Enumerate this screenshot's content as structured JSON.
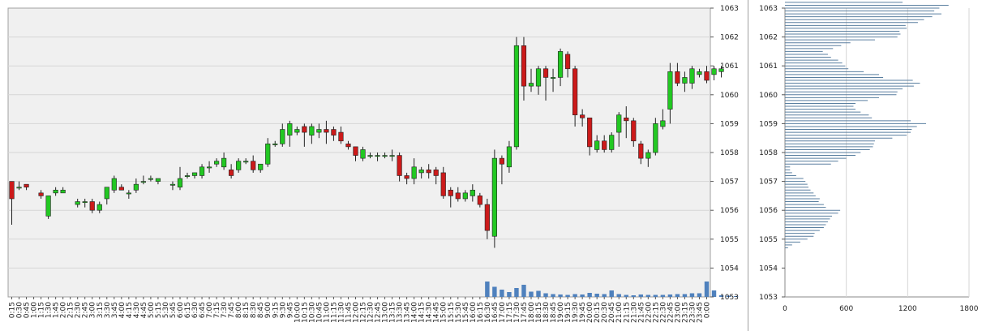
{
  "colors": {
    "up": "#22c822",
    "down": "#cc1a1a",
    "volume": "#4f81bd",
    "profile": "#5a7fa0",
    "plot_bg": "#f0f0f0"
  },
  "chart_data": [
    {
      "type": "candlestick",
      "ylim": [
        1053,
        1063
      ],
      "yticks": [
        "1053",
        "1054",
        "1055",
        "1056",
        "1057",
        "1058",
        "1059",
        "1060",
        "1061",
        "1062",
        "1063"
      ],
      "grid": true,
      "xticks": [
        "0:15",
        "0:30",
        "0:45",
        "1:00",
        "1:15",
        "1:30",
        "1:45",
        "2:00",
        "2:15",
        "2:30",
        "2:45",
        "3:00",
        "3:15",
        "3:30",
        "3:45",
        "4:00",
        "4:15",
        "4:30",
        "4:45",
        "5:00",
        "5:15",
        "5:30",
        "5:45",
        "6:00",
        "6:15",
        "6:30",
        "6:45",
        "7:00",
        "7:15",
        "7:30",
        "7:45",
        "8:00",
        "8:15",
        "8:30",
        "8:45",
        "9:00",
        "9:15",
        "9:30",
        "9:45",
        "10:00",
        "10:15",
        "10:30",
        "10:45",
        "11:00",
        "11:15",
        "11:30",
        "11:45",
        "12:00",
        "12:15",
        "12:30",
        "12:45",
        "13:00",
        "13:15",
        "13:30",
        "13:45",
        "14:00",
        "14:15",
        "14:30",
        "14:45",
        "15:00",
        "15:15",
        "15:30",
        "15:45",
        "16:00",
        "16:15",
        "16:30",
        "16:45",
        "17:00",
        "17:15",
        "17:30",
        "17:45",
        "18:00",
        "18:15",
        "18:30",
        "18:45",
        "19:00",
        "19:15",
        "19:30",
        "19:45",
        "20:00",
        "20:15",
        "20:30",
        "20:45",
        "21:00",
        "21:15",
        "21:30",
        "21:45",
        "22:00",
        "22:15",
        "22:30",
        "22:45",
        "23:00",
        "23:15",
        "23:30",
        "23:45",
        "0:00"
      ],
      "candles": [
        {
          "o": 1057.0,
          "h": 1057.0,
          "l": 1055.5,
          "c": 1056.4
        },
        {
          "o": 1056.8,
          "h": 1057.0,
          "l": 1056.7,
          "c": 1056.8
        },
        {
          "o": 1056.9,
          "h": 1056.9,
          "l": 1056.7,
          "c": 1056.8
        },
        null,
        {
          "o": 1056.6,
          "h": 1056.7,
          "l": 1056.4,
          "c": 1056.5
        },
        {
          "o": 1055.8,
          "h": 1056.5,
          "l": 1055.7,
          "c": 1056.5
        },
        {
          "o": 1056.6,
          "h": 1056.8,
          "l": 1056.5,
          "c": 1056.7
        },
        {
          "o": 1056.6,
          "h": 1056.8,
          "l": 1056.6,
          "c": 1056.7
        },
        null,
        {
          "o": 1056.2,
          "h": 1056.4,
          "l": 1056.1,
          "c": 1056.3
        },
        {
          "o": 1056.3,
          "h": 1056.4,
          "l": 1056.1,
          "c": 1056.3
        },
        {
          "o": 1056.3,
          "h": 1056.4,
          "l": 1055.9,
          "c": 1056.0
        },
        {
          "o": 1056.0,
          "h": 1056.3,
          "l": 1055.9,
          "c": 1056.2
        },
        {
          "o": 1056.4,
          "h": 1056.8,
          "l": 1056.2,
          "c": 1056.8
        },
        {
          "o": 1056.7,
          "h": 1057.2,
          "l": 1056.6,
          "c": 1057.1
        },
        {
          "o": 1056.8,
          "h": 1056.9,
          "l": 1056.7,
          "c": 1056.7
        },
        {
          "o": 1056.6,
          "h": 1056.7,
          "l": 1056.4,
          "c": 1056.6
        },
        {
          "o": 1056.7,
          "h": 1057.1,
          "l": 1056.6,
          "c": 1056.9
        },
        {
          "o": 1057.0,
          "h": 1057.2,
          "l": 1056.9,
          "c": 1057.0
        },
        {
          "o": 1057.1,
          "h": 1057.2,
          "l": 1057.0,
          "c": 1057.1
        },
        {
          "o": 1057.0,
          "h": 1057.1,
          "l": 1056.9,
          "c": 1057.1
        },
        null,
        {
          "o": 1056.9,
          "h": 1057.0,
          "l": 1056.7,
          "c": 1056.9
        },
        {
          "o": 1056.8,
          "h": 1057.5,
          "l": 1056.7,
          "c": 1057.1
        },
        {
          "o": 1057.2,
          "h": 1057.3,
          "l": 1057.1,
          "c": 1057.2
        },
        {
          "o": 1057.2,
          "h": 1057.3,
          "l": 1057.1,
          "c": 1057.3
        },
        {
          "o": 1057.2,
          "h": 1057.6,
          "l": 1057.1,
          "c": 1057.5
        },
        {
          "o": 1057.5,
          "h": 1057.7,
          "l": 1057.3,
          "c": 1057.5
        },
        {
          "o": 1057.6,
          "h": 1057.8,
          "l": 1057.5,
          "c": 1057.7
        },
        {
          "o": 1057.5,
          "h": 1058.0,
          "l": 1057.4,
          "c": 1057.8
        },
        {
          "o": 1057.4,
          "h": 1057.6,
          "l": 1057.1,
          "c": 1057.2
        },
        {
          "o": 1057.4,
          "h": 1057.8,
          "l": 1057.3,
          "c": 1057.7
        },
        {
          "o": 1057.7,
          "h": 1057.8,
          "l": 1057.6,
          "c": 1057.7
        },
        {
          "o": 1057.7,
          "h": 1057.9,
          "l": 1057.3,
          "c": 1057.4
        },
        {
          "o": 1057.4,
          "h": 1057.6,
          "l": 1057.3,
          "c": 1057.6
        },
        {
          "o": 1057.6,
          "h": 1058.5,
          "l": 1057.5,
          "c": 1058.3
        },
        {
          "o": 1058.3,
          "h": 1058.4,
          "l": 1058.2,
          "c": 1058.3
        },
        {
          "o": 1058.3,
          "h": 1059.0,
          "l": 1058.2,
          "c": 1058.8
        },
        {
          "o": 1058.6,
          "h": 1059.1,
          "l": 1058.2,
          "c": 1059.0
        },
        {
          "o": 1058.7,
          "h": 1058.9,
          "l": 1058.6,
          "c": 1058.8
        },
        {
          "o": 1058.9,
          "h": 1059.0,
          "l": 1058.2,
          "c": 1058.7
        },
        {
          "o": 1058.6,
          "h": 1059.0,
          "l": 1058.3,
          "c": 1058.9
        },
        {
          "o": 1058.7,
          "h": 1059.0,
          "l": 1058.5,
          "c": 1058.8
        },
        {
          "o": 1058.8,
          "h": 1059.1,
          "l": 1058.3,
          "c": 1058.7
        },
        {
          "o": 1058.8,
          "h": 1058.9,
          "l": 1058.4,
          "c": 1058.6
        },
        {
          "o": 1058.7,
          "h": 1058.9,
          "l": 1058.3,
          "c": 1058.4
        },
        {
          "o": 1058.3,
          "h": 1058.4,
          "l": 1058.1,
          "c": 1058.2
        },
        {
          "o": 1058.2,
          "h": 1058.2,
          "l": 1057.7,
          "c": 1057.9
        },
        {
          "o": 1057.8,
          "h": 1058.2,
          "l": 1057.7,
          "c": 1058.1
        },
        {
          "o": 1057.9,
          "h": 1058.0,
          "l": 1057.8,
          "c": 1057.9
        },
        {
          "o": 1057.9,
          "h": 1058.0,
          "l": 1057.7,
          "c": 1057.9
        },
        {
          "o": 1057.9,
          "h": 1058.0,
          "l": 1057.8,
          "c": 1057.9
        },
        {
          "o": 1057.9,
          "h": 1058.1,
          "l": 1057.7,
          "c": 1057.9
        },
        {
          "o": 1057.9,
          "h": 1058.0,
          "l": 1057.0,
          "c": 1057.2
        },
        {
          "o": 1057.2,
          "h": 1057.3,
          "l": 1056.9,
          "c": 1057.1
        },
        {
          "o": 1057.1,
          "h": 1057.8,
          "l": 1056.9,
          "c": 1057.5
        },
        {
          "o": 1057.3,
          "h": 1057.5,
          "l": 1057.1,
          "c": 1057.4
        },
        {
          "o": 1057.4,
          "h": 1057.6,
          "l": 1057.1,
          "c": 1057.3
        },
        {
          "o": 1057.4,
          "h": 1057.5,
          "l": 1056.9,
          "c": 1057.2
        },
        {
          "o": 1057.3,
          "h": 1057.5,
          "l": 1056.4,
          "c": 1056.5
        },
        {
          "o": 1056.7,
          "h": 1056.8,
          "l": 1056.1,
          "c": 1056.5
        },
        {
          "o": 1056.6,
          "h": 1056.8,
          "l": 1056.3,
          "c": 1056.4
        },
        {
          "o": 1056.4,
          "h": 1056.7,
          "l": 1056.3,
          "c": 1056.6
        },
        {
          "o": 1056.5,
          "h": 1056.9,
          "l": 1056.3,
          "c": 1056.7
        },
        {
          "o": 1056.5,
          "h": 1056.6,
          "l": 1056.1,
          "c": 1056.2
        },
        {
          "o": 1056.2,
          "h": 1056.4,
          "l": 1055.0,
          "c": 1055.3
        },
        {
          "o": 1055.1,
          "h": 1058.1,
          "l": 1054.7,
          "c": 1057.8
        },
        {
          "o": 1057.8,
          "h": 1057.9,
          "l": 1056.9,
          "c": 1057.6
        },
        {
          "o": 1057.5,
          "h": 1058.4,
          "l": 1057.3,
          "c": 1058.2
        },
        {
          "o": 1058.2,
          "h": 1062.0,
          "l": 1058.1,
          "c": 1061.7
        },
        {
          "o": 1061.7,
          "h": 1062.0,
          "l": 1059.8,
          "c": 1060.3
        },
        {
          "o": 1060.3,
          "h": 1060.9,
          "l": 1060.1,
          "c": 1060.4
        },
        {
          "o": 1060.3,
          "h": 1061.0,
          "l": 1060.0,
          "c": 1060.9
        },
        {
          "o": 1060.9,
          "h": 1061.0,
          "l": 1059.8,
          "c": 1060.6
        },
        {
          "o": 1060.6,
          "h": 1060.9,
          "l": 1060.1,
          "c": 1060.6
        },
        {
          "o": 1060.6,
          "h": 1061.6,
          "l": 1060.3,
          "c": 1061.5
        },
        {
          "o": 1061.4,
          "h": 1061.5,
          "l": 1060.6,
          "c": 1060.9
        },
        {
          "o": 1060.9,
          "h": 1061.0,
          "l": 1058.9,
          "c": 1059.3
        },
        {
          "o": 1059.3,
          "h": 1059.5,
          "l": 1058.9,
          "c": 1059.2
        },
        {
          "o": 1059.2,
          "h": 1059.2,
          "l": 1057.9,
          "c": 1058.2
        },
        {
          "o": 1058.1,
          "h": 1058.6,
          "l": 1058.0,
          "c": 1058.4
        },
        {
          "o": 1058.4,
          "h": 1058.6,
          "l": 1058.0,
          "c": 1058.1
        },
        {
          "o": 1058.1,
          "h": 1058.7,
          "l": 1058.0,
          "c": 1058.6
        },
        {
          "o": 1058.7,
          "h": 1059.4,
          "l": 1058.2,
          "c": 1059.3
        },
        {
          "o": 1059.2,
          "h": 1059.6,
          "l": 1058.5,
          "c": 1059.1
        },
        {
          "o": 1059.1,
          "h": 1059.2,
          "l": 1058.2,
          "c": 1058.4
        },
        {
          "o": 1058.3,
          "h": 1058.4,
          "l": 1057.6,
          "c": 1057.8
        },
        {
          "o": 1057.8,
          "h": 1058.1,
          "l": 1057.5,
          "c": 1058.0
        },
        {
          "o": 1058.0,
          "h": 1059.2,
          "l": 1057.9,
          "c": 1059.0
        },
        {
          "o": 1058.9,
          "h": 1059.5,
          "l": 1058.8,
          "c": 1059.1
        },
        {
          "o": 1059.5,
          "h": 1061.1,
          "l": 1059.0,
          "c": 1060.8
        },
        {
          "o": 1060.8,
          "h": 1061.1,
          "l": 1060.3,
          "c": 1060.4
        },
        {
          "o": 1060.4,
          "h": 1060.8,
          "l": 1060.1,
          "c": 1060.6
        },
        {
          "o": 1060.4,
          "h": 1061.0,
          "l": 1060.2,
          "c": 1060.9
        },
        {
          "o": 1060.7,
          "h": 1060.9,
          "l": 1060.6,
          "c": 1060.8
        },
        {
          "o": 1060.8,
          "h": 1061.0,
          "l": 1060.4,
          "c": 1060.5
        },
        {
          "o": 1060.7,
          "h": 1061.0,
          "l": 1060.5,
          "c": 1060.9
        },
        {
          "o": 1060.8,
          "h": 1061.0,
          "l": 1060.6,
          "c": 1060.9
        }
      ],
      "volume": [
        0,
        0,
        0,
        0,
        0,
        0,
        0,
        0,
        0,
        0,
        0,
        0,
        0,
        0,
        0,
        0,
        0,
        0,
        0,
        0,
        0,
        0,
        0,
        0,
        0,
        0,
        0,
        0,
        0,
        0,
        0,
        0,
        0,
        0,
        0,
        0,
        0,
        0,
        0,
        0,
        0,
        0,
        0,
        0,
        0,
        0,
        0,
        0,
        0,
        0,
        0,
        0,
        0,
        0,
        0,
        0,
        0,
        0,
        0,
        0,
        0,
        0,
        0,
        0,
        0,
        3.8,
        2.5,
        1.8,
        1.2,
        2.2,
        3.0,
        1.3,
        1.5,
        0.9,
        0.7,
        0.6,
        0.5,
        0.7,
        0.6,
        1.0,
        0.8,
        0.7,
        1.6,
        0.7,
        0.5,
        0.4,
        0.6,
        0.5,
        0.5,
        0.5,
        0.6,
        0.7,
        0.7,
        0.9,
        0.9,
        3.8,
        1.6,
        0.4,
        0.3,
        0.2
      ]
    },
    {
      "type": "bar",
      "orientation": "horizontal",
      "ylim": [
        1053,
        1063
      ],
      "yticks": [
        "1053",
        "1054",
        "1055",
        "1056",
        "1057",
        "1058",
        "1059",
        "1060",
        "1061",
        "1062",
        "1063"
      ],
      "xticks": [
        "0",
        "600",
        "1200",
        "1800"
      ],
      "xlim": [
        0,
        1800
      ],
      "grid": true,
      "levels_start": 1054.7,
      "levels_step": 0.1,
      "values": [
        30,
        70,
        150,
        220,
        280,
        290,
        340,
        380,
        400,
        420,
        440,
        460,
        520,
        540,
        400,
        380,
        330,
        340,
        300,
        280,
        250,
        230,
        220,
        200,
        180,
        110,
        70,
        50,
        50,
        450,
        520,
        600,
        690,
        740,
        830,
        860,
        870,
        880,
        1050,
        1190,
        1230,
        1240,
        1290,
        1380,
        1230,
        850,
        820,
        740,
        690,
        670,
        690,
        810,
        920,
        1090,
        1100,
        1150,
        1260,
        1320,
        1250,
        960,
        920,
        770,
        620,
        590,
        560,
        520,
        450,
        420,
        370,
        470,
        550,
        640,
        880,
        1100,
        1130,
        1120,
        1190,
        1180,
        1300,
        1360,
        1440,
        1530,
        1460,
        1510,
        1600,
        1150,
        830,
        600,
        580,
        500,
        470,
        430,
        420,
        380,
        330,
        330,
        300,
        250,
        200,
        170,
        160,
        180,
        130
      ]
    }
  ]
}
